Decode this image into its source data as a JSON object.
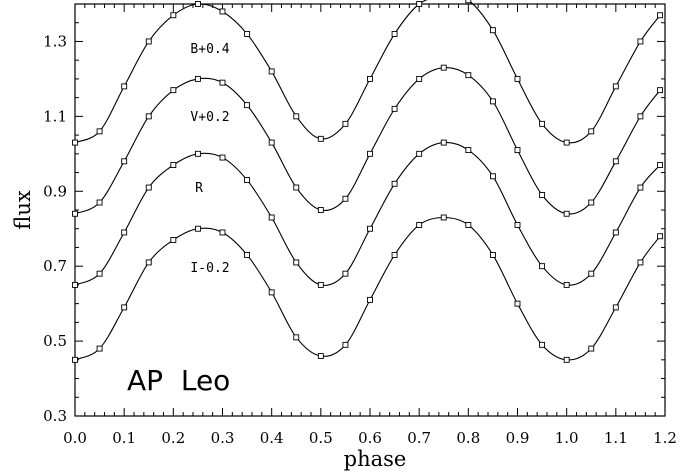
{
  "chart_data": {
    "type": "scatter",
    "xlabel": "phase",
    "ylabel": "flux",
    "xlim": [
      0.0,
      1.2
    ],
    "ylim": [
      0.3,
      1.4
    ],
    "x_ticks": [
      "0.0",
      "0.1",
      "0.2",
      "0.3",
      "0.4",
      "0.5",
      "0.6",
      "0.7",
      "0.8",
      "0.9",
      "1.0",
      "1.1",
      "1.2"
    ],
    "y_ticks": [
      "0.3",
      "0.5",
      "0.7",
      "0.9",
      "1.1",
      "1.3"
    ],
    "annotation": "AP  Leo",
    "grid": false,
    "legend": "none",
    "markers": "open squares (observations) with solid model curve",
    "series": [
      {
        "label": "B+0.4",
        "offset": 0.4,
        "x": [
          0.0,
          0.05,
          0.1,
          0.15,
          0.2,
          0.25,
          0.3,
          0.35,
          0.4,
          0.45,
          0.5,
          0.55,
          0.6,
          0.65,
          0.7,
          0.75,
          0.8,
          0.85,
          0.9,
          0.95,
          1.0,
          1.05,
          1.1,
          1.15,
          1.19
        ],
        "y": [
          1.03,
          1.06,
          1.18,
          1.3,
          1.37,
          1.4,
          1.38,
          1.32,
          1.22,
          1.1,
          1.04,
          1.08,
          1.2,
          1.32,
          1.4,
          1.42,
          1.41,
          1.33,
          1.2,
          1.08,
          1.03,
          1.06,
          1.18,
          1.3,
          1.37
        ]
      },
      {
        "label": "V+0.2",
        "offset": 0.2,
        "x": [
          0.0,
          0.05,
          0.1,
          0.15,
          0.2,
          0.25,
          0.3,
          0.35,
          0.4,
          0.45,
          0.5,
          0.55,
          0.6,
          0.65,
          0.7,
          0.75,
          0.8,
          0.85,
          0.9,
          0.95,
          1.0,
          1.05,
          1.1,
          1.15,
          1.19
        ],
        "y": [
          0.84,
          0.87,
          0.98,
          1.1,
          1.17,
          1.2,
          1.19,
          1.13,
          1.03,
          0.91,
          0.85,
          0.88,
          1.0,
          1.12,
          1.2,
          1.23,
          1.21,
          1.14,
          1.01,
          0.89,
          0.84,
          0.87,
          0.98,
          1.1,
          1.17
        ]
      },
      {
        "label": "R",
        "offset": 0.0,
        "x": [
          0.0,
          0.05,
          0.1,
          0.15,
          0.2,
          0.25,
          0.3,
          0.35,
          0.4,
          0.45,
          0.5,
          0.55,
          0.6,
          0.65,
          0.7,
          0.75,
          0.8,
          0.85,
          0.9,
          0.95,
          1.0,
          1.05,
          1.1,
          1.15,
          1.19
        ],
        "y": [
          0.65,
          0.68,
          0.79,
          0.91,
          0.97,
          1.0,
          0.99,
          0.93,
          0.83,
          0.71,
          0.65,
          0.68,
          0.8,
          0.92,
          1.0,
          1.03,
          1.01,
          0.94,
          0.81,
          0.7,
          0.65,
          0.68,
          0.79,
          0.91,
          0.97
        ]
      },
      {
        "label": "I-0.2",
        "offset": -0.2,
        "x": [
          0.0,
          0.05,
          0.1,
          0.15,
          0.2,
          0.25,
          0.3,
          0.35,
          0.4,
          0.45,
          0.5,
          0.55,
          0.6,
          0.65,
          0.7,
          0.75,
          0.8,
          0.85,
          0.9,
          0.95,
          1.0,
          1.05,
          1.1,
          1.15,
          1.19
        ],
        "y": [
          0.45,
          0.48,
          0.59,
          0.71,
          0.77,
          0.8,
          0.79,
          0.73,
          0.63,
          0.51,
          0.46,
          0.49,
          0.61,
          0.73,
          0.81,
          0.83,
          0.81,
          0.73,
          0.6,
          0.49,
          0.45,
          0.48,
          0.59,
          0.71,
          0.78
        ]
      }
    ]
  }
}
